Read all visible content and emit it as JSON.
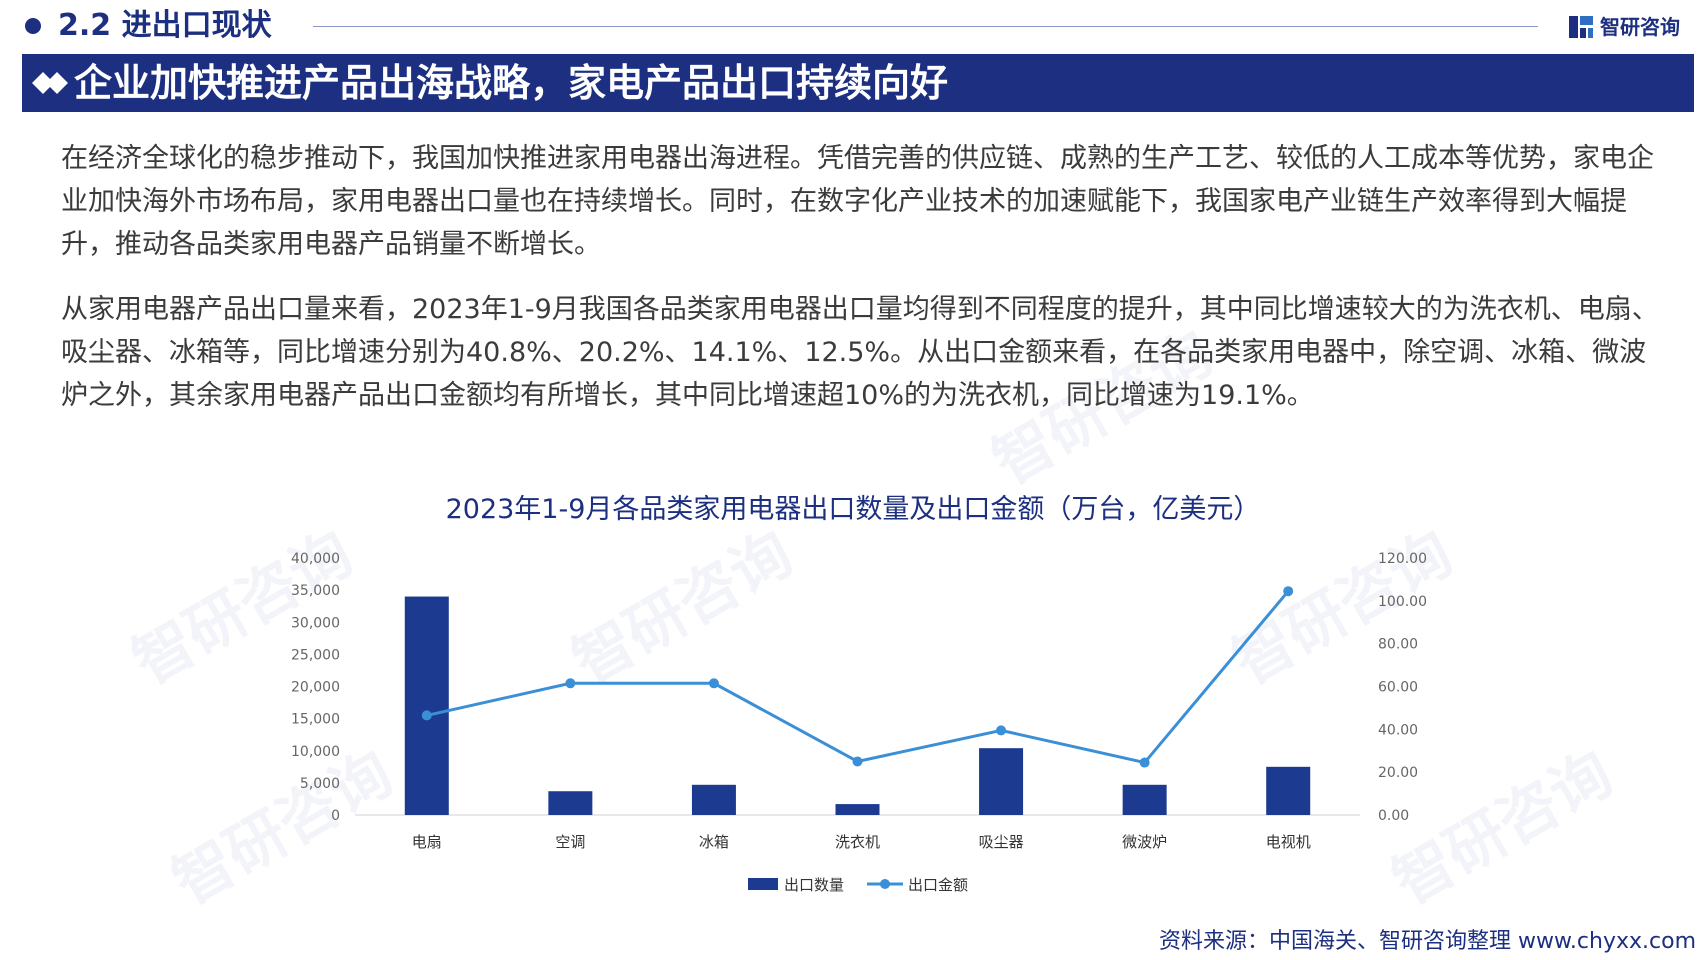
{
  "header": {
    "section_title": "2.2 进出口现状",
    "logo_text": "智研咨询",
    "banner_title": "企业加快推进产品出海战略，家电产品出口持续向好"
  },
  "paragraphs": [
    "在经济全球化的稳步推动下，我国加快推进家用电器出海进程。凭借完善的供应链、成熟的生产工艺、较低的人工成本等优势，家电企业加快海外市场布局，家用电器出口量也在持续增长。同时，在数字化产业技术的加速赋能下，我国家电产业链生产效率得到大幅提升，推动各品类家用电器产品销量不断增长。",
    "从家用电器产品出口量来看，2023年1-9月我国各品类家用电器出口量均得到不同程度的提升，其中同比增速较大的为洗衣机、电扇、吸尘器、冰箱等，同比增速分别为40.8%、20.2%、14.1%、12.5%。从出口金额来看，在各品类家用电器中，除空调、冰箱、微波炉之外，其余家用电器产品出口金额均有所增长，其中同比增速超10%的为洗衣机，同比增速为19.1%。"
  ],
  "chart_data": {
    "type": "bar",
    "title": "2023年1-9月各品类家用电器出口数量及出口金额（万台，亿美元）",
    "categories": [
      "电扇",
      "空调",
      "冰箱",
      "洗衣机",
      "吸尘器",
      "微波炉",
      "电视机"
    ],
    "series": [
      {
        "name": "出口数量",
        "type": "bar",
        "axis": "left",
        "color": "#1c3a8f",
        "values": [
          34000,
          3700,
          4700,
          1700,
          10400,
          4700,
          7500
        ]
      },
      {
        "name": "出口金额",
        "type": "line",
        "axis": "right",
        "color": "#3a8fd6",
        "values": [
          46.5,
          61.5,
          61.5,
          25.0,
          39.5,
          24.5,
          104.5
        ]
      }
    ],
    "y_left": {
      "min": 0,
      "max": 40000,
      "ticks": [
        "0",
        "5,000",
        "10,000",
        "15,000",
        "20,000",
        "25,000",
        "30,000",
        "35,000",
        "40,000"
      ]
    },
    "y_right": {
      "min": 0,
      "max": 120,
      "ticks": [
        "0.00",
        "20.00",
        "40.00",
        "60.00",
        "80.00",
        "100.00",
        "120.00"
      ]
    },
    "grid": false,
    "legend": "bottom"
  },
  "footer": {
    "source": "资料来源：中国海关、智研咨询整理 www.chyxx.com"
  },
  "colors": {
    "brand": "#1c2f80",
    "bar": "#1c3a8f",
    "line": "#3a8fd6"
  }
}
